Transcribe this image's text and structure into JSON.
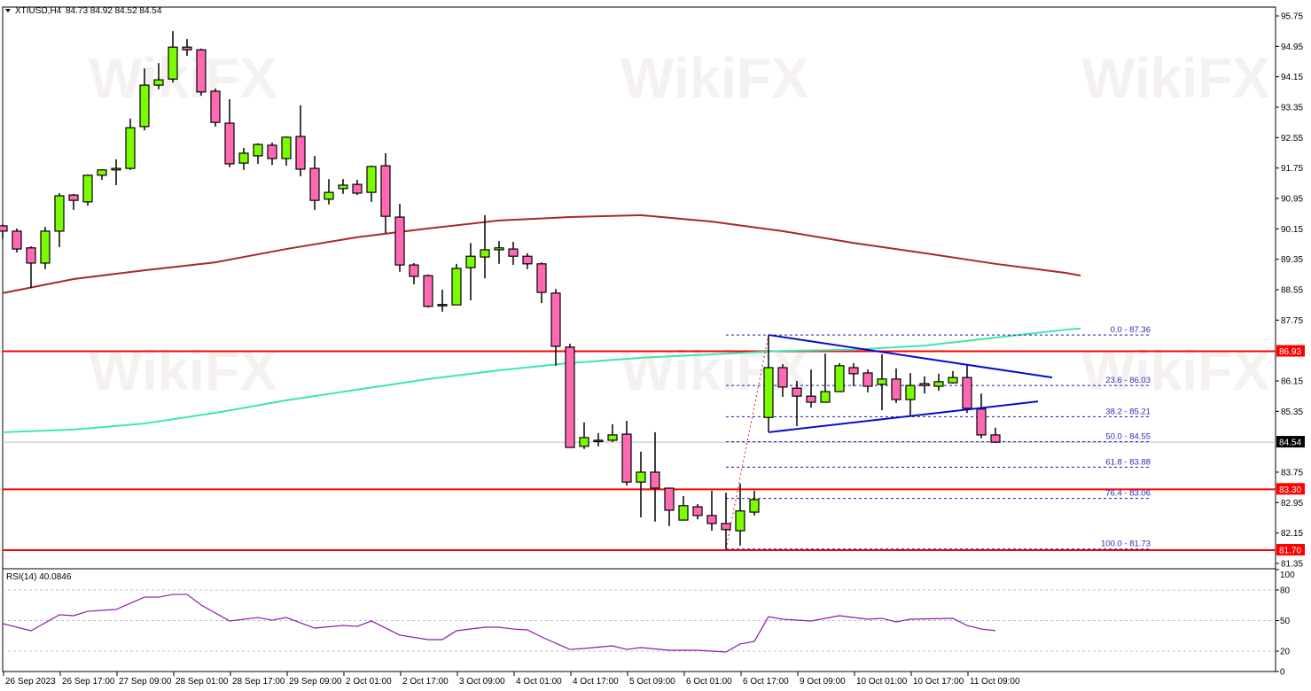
{
  "header": {
    "symbol": "XTIUSD,H4",
    "ohlc": "84.73 84.92 84.52 84.54",
    "menu_icon": "triangle-down-icon"
  },
  "watermark": "WikiFX",
  "colors": {
    "bull": "#7cfc00",
    "bear": "#ff69b4",
    "outline": "#000000",
    "level": "#ff0000",
    "slow_ma": "#a52a2a",
    "fast_ma": "#3ce6b0",
    "triangle": "#0a0ad0",
    "fib": "#1a1aa0",
    "fib_trend": "#d02020",
    "rsi": "#8a1aa8",
    "current_price_badge": "#000000",
    "grid": "#c0c0c0"
  },
  "chart_data": [
    {
      "type": "candlestick",
      "title": "XTIUSD,H4",
      "ylim": [
        81.35,
        95.75
      ],
      "y_tick_labels": [
        "95.75",
        "94.95",
        "94.15",
        "93.35",
        "92.55",
        "91.75",
        "90.95",
        "90.15",
        "89.35",
        "88.55",
        "87.75",
        "86.15",
        "85.35",
        "83.75",
        "82.95",
        "82.15",
        "81.35"
      ],
      "x_tick_labels": [
        "26 Sep 2023",
        "26 Sep 17:00",
        "27 Sep 09:00",
        "28 Sep 01:00",
        "28 Sep 17:00",
        "29 Sep 09:00",
        "2 Oct 01:00",
        "2 Oct 17:00",
        "3 Oct 09:00",
        "4 Oct 01:00",
        "4 Oct 17:00",
        "5 Oct 09:00",
        "6 Oct 01:00",
        "6 Oct 17:00",
        "9 Oct 09:00",
        "10 Oct 01:00",
        "10 Oct 17:00",
        "11 Oct 09:00"
      ],
      "bars_per_x_label": 4,
      "ohlc": [
        [
          90.23,
          90.27,
          89.88,
          90.09
        ],
        [
          90.09,
          90.16,
          89.53,
          89.62
        ],
        [
          89.65,
          89.69,
          88.6,
          89.25
        ],
        [
          89.25,
          90.2,
          89.09,
          90.09
        ],
        [
          90.09,
          91.09,
          89.67,
          91.02
        ],
        [
          91.04,
          91.07,
          90.65,
          90.9
        ],
        [
          90.86,
          91.58,
          90.76,
          91.56
        ],
        [
          91.56,
          91.72,
          91.44,
          91.7
        ],
        [
          91.7,
          91.98,
          91.3,
          91.74
        ],
        [
          91.74,
          93.05,
          91.7,
          92.81
        ],
        [
          92.84,
          94.37,
          92.74,
          93.93
        ],
        [
          93.93,
          94.51,
          93.82,
          94.07
        ],
        [
          94.09,
          95.35,
          94.0,
          94.93
        ],
        [
          94.93,
          95.14,
          94.7,
          94.86
        ],
        [
          94.86,
          94.89,
          93.65,
          93.75
        ],
        [
          93.77,
          93.84,
          92.84,
          92.95
        ],
        [
          92.93,
          93.56,
          91.77,
          91.86
        ],
        [
          91.88,
          92.28,
          91.7,
          92.14
        ],
        [
          92.07,
          92.4,
          91.86,
          92.37
        ],
        [
          92.35,
          92.42,
          91.83,
          92.0
        ],
        [
          92.0,
          92.58,
          91.81,
          92.56
        ],
        [
          92.58,
          93.4,
          91.53,
          91.72
        ],
        [
          91.74,
          92.07,
          90.65,
          90.9
        ],
        [
          90.93,
          91.46,
          90.79,
          91.11
        ],
        [
          91.21,
          91.46,
          91.07,
          91.3
        ],
        [
          91.32,
          91.44,
          91.04,
          91.09
        ],
        [
          91.11,
          91.81,
          90.86,
          91.79
        ],
        [
          91.81,
          92.14,
          90.04,
          90.48
        ],
        [
          90.46,
          90.81,
          89.02,
          89.2
        ],
        [
          89.2,
          89.25,
          88.69,
          88.9
        ],
        [
          88.92,
          88.95,
          88.08,
          88.11
        ],
        [
          88.16,
          88.55,
          87.97,
          88.15
        ],
        [
          88.15,
          89.23,
          88.15,
          89.11
        ],
        [
          89.13,
          89.78,
          88.27,
          89.43
        ],
        [
          89.41,
          90.51,
          88.85,
          89.6
        ],
        [
          89.6,
          89.83,
          89.23,
          89.65
        ],
        [
          89.62,
          89.81,
          89.2,
          89.43
        ],
        [
          89.43,
          89.51,
          89.09,
          89.23
        ],
        [
          89.23,
          89.27,
          88.2,
          88.48
        ],
        [
          88.46,
          88.57,
          86.55,
          87.06
        ],
        [
          87.04,
          87.13,
          84.4,
          84.4
        ],
        [
          84.43,
          85.06,
          84.36,
          84.66
        ],
        [
          84.59,
          84.78,
          84.43,
          84.57
        ],
        [
          84.59,
          85.01,
          84.54,
          84.73
        ],
        [
          84.75,
          85.1,
          83.4,
          83.49
        ],
        [
          83.49,
          84.29,
          82.56,
          83.75
        ],
        [
          83.75,
          84.8,
          82.45,
          83.33
        ],
        [
          83.33,
          83.33,
          82.33,
          82.75
        ],
        [
          82.49,
          83.12,
          82.49,
          82.87
        ],
        [
          82.84,
          82.91,
          82.51,
          82.61
        ],
        [
          82.61,
          83.26,
          82.21,
          82.4
        ],
        [
          82.4,
          83.21,
          81.73,
          82.24
        ],
        [
          82.21,
          83.45,
          81.82,
          82.73
        ],
        [
          82.7,
          83.26,
          82.61,
          83.03
        ],
        [
          85.19,
          87.36,
          84.8,
          86.5
        ],
        [
          86.5,
          86.59,
          85.73,
          85.99
        ],
        [
          85.96,
          86.15,
          84.96,
          85.75
        ],
        [
          85.75,
          86.45,
          85.45,
          85.59
        ],
        [
          85.59,
          86.87,
          85.59,
          85.87
        ],
        [
          85.87,
          86.62,
          85.87,
          86.55
        ],
        [
          86.5,
          86.62,
          86.01,
          86.34
        ],
        [
          86.36,
          86.45,
          85.85,
          86.01
        ],
        [
          86.06,
          86.85,
          85.38,
          86.2
        ],
        [
          86.2,
          86.48,
          85.57,
          85.66
        ],
        [
          85.66,
          86.36,
          85.24,
          86.03
        ],
        [
          86.08,
          86.27,
          85.82,
          86.03
        ],
        [
          86.01,
          86.34,
          85.89,
          86.13
        ],
        [
          86.1,
          86.41,
          86.08,
          86.24
        ],
        [
          86.24,
          86.57,
          85.31,
          85.43
        ],
        [
          85.41,
          85.82,
          84.64,
          84.73
        ],
        [
          84.73,
          84.92,
          84.52,
          84.54
        ]
      ],
      "horizontal_levels": [
        {
          "price": 86.93,
          "label": "86.93"
        },
        {
          "price": 83.3,
          "label": "83.30"
        },
        {
          "price": 81.7,
          "label": "81.70"
        }
      ],
      "current_price": {
        "price": 84.54,
        "label": "84.54"
      },
      "moving_averages": [
        {
          "role": "slow",
          "points": [
            [
              0,
              88.46
            ],
            [
              5,
              88.83
            ],
            [
              10,
              89.06
            ],
            [
              15,
              89.27
            ],
            [
              20,
              89.62
            ],
            [
              25,
              89.93
            ],
            [
              30,
              90.16
            ],
            [
              35,
              90.37
            ],
            [
              40,
              90.46
            ],
            [
              45,
              90.51
            ],
            [
              50,
              90.34
            ],
            [
              55,
              90.09
            ],
            [
              60,
              89.78
            ],
            [
              65,
              89.51
            ],
            [
              70,
              89.23
            ],
            [
              75,
              88.99
            ],
            [
              76,
              88.92
            ]
          ]
        },
        {
          "role": "fast",
          "points": [
            [
              0,
              84.8
            ],
            [
              5,
              84.87
            ],
            [
              10,
              85.03
            ],
            [
              15,
              85.31
            ],
            [
              20,
              85.64
            ],
            [
              25,
              85.92
            ],
            [
              30,
              86.2
            ],
            [
              35,
              86.43
            ],
            [
              40,
              86.62
            ],
            [
              45,
              86.76
            ],
            [
              50,
              86.85
            ],
            [
              55,
              86.94
            ],
            [
              60,
              86.97
            ],
            [
              65,
              87.08
            ],
            [
              70,
              87.29
            ],
            [
              75,
              87.5
            ],
            [
              76,
              87.53
            ]
          ]
        }
      ],
      "triangle_lines": [
        {
          "from": [
            54,
            87.36
          ],
          "to": [
            74,
            86.24
          ]
        },
        {
          "from": [
            54,
            84.8
          ],
          "to": [
            73,
            85.61
          ]
        }
      ],
      "fibonacci": {
        "from": [
          51,
          81.73
        ],
        "to": [
          54,
          87.36
        ],
        "levels": [
          {
            "price": 87.36,
            "label": "0.0 - 87.36"
          },
          {
            "price": 86.03,
            "label": "23.6 - 86.03"
          },
          {
            "price": 85.21,
            "label": "38.2 - 85.21"
          },
          {
            "price": 84.55,
            "label": "50.0 - 84.55"
          },
          {
            "price": 83.88,
            "label": "61.8 - 83.88"
          },
          {
            "price": 83.06,
            "label": "76.4 - 83.06"
          },
          {
            "price": 81.73,
            "label": "100.0 - 81.73"
          }
        ]
      }
    },
    {
      "type": "line",
      "title": "RSI(14) 40.0846",
      "ylim": [
        0,
        100
      ],
      "y_tick_labels": [
        "100",
        "80",
        "50",
        "20",
        "0"
      ],
      "levels": [
        80,
        50,
        20
      ],
      "points": [
        [
          0,
          47.0
        ],
        [
          2,
          40.0
        ],
        [
          4,
          55.7
        ],
        [
          5,
          54.8
        ],
        [
          6,
          59.1
        ],
        [
          8,
          60.9
        ],
        [
          10,
          73.0
        ],
        [
          11,
          73.0
        ],
        [
          12,
          75.7
        ],
        [
          13,
          75.7
        ],
        [
          14,
          65.2
        ],
        [
          16,
          49.6
        ],
        [
          18,
          53.0
        ],
        [
          19,
          50.4
        ],
        [
          20,
          53.0
        ],
        [
          22,
          42.6
        ],
        [
          24,
          45.2
        ],
        [
          25,
          44.3
        ],
        [
          26,
          49.6
        ],
        [
          28,
          35.7
        ],
        [
          30,
          31.3
        ],
        [
          31,
          31.3
        ],
        [
          32,
          40.0
        ],
        [
          34,
          43.5
        ],
        [
          35,
          43.5
        ],
        [
          36,
          41.7
        ],
        [
          37,
          40.9
        ],
        [
          38,
          33.9
        ],
        [
          40,
          21.7
        ],
        [
          41,
          22.6
        ],
        [
          43,
          25.2
        ],
        [
          44,
          21.7
        ],
        [
          45,
          23.5
        ],
        [
          47,
          20.9
        ],
        [
          49,
          20.9
        ],
        [
          51,
          19.1
        ],
        [
          52,
          27.0
        ],
        [
          53,
          29.6
        ],
        [
          54,
          53.9
        ],
        [
          55,
          51.3
        ],
        [
          57,
          49.6
        ],
        [
          59,
          54.8
        ],
        [
          61,
          51.3
        ],
        [
          62,
          52.2
        ],
        [
          63,
          48.7
        ],
        [
          64,
          51.3
        ],
        [
          67,
          52.2
        ],
        [
          68,
          45.2
        ],
        [
          69,
          41.7
        ],
        [
          70,
          40.08
        ]
      ]
    }
  ]
}
